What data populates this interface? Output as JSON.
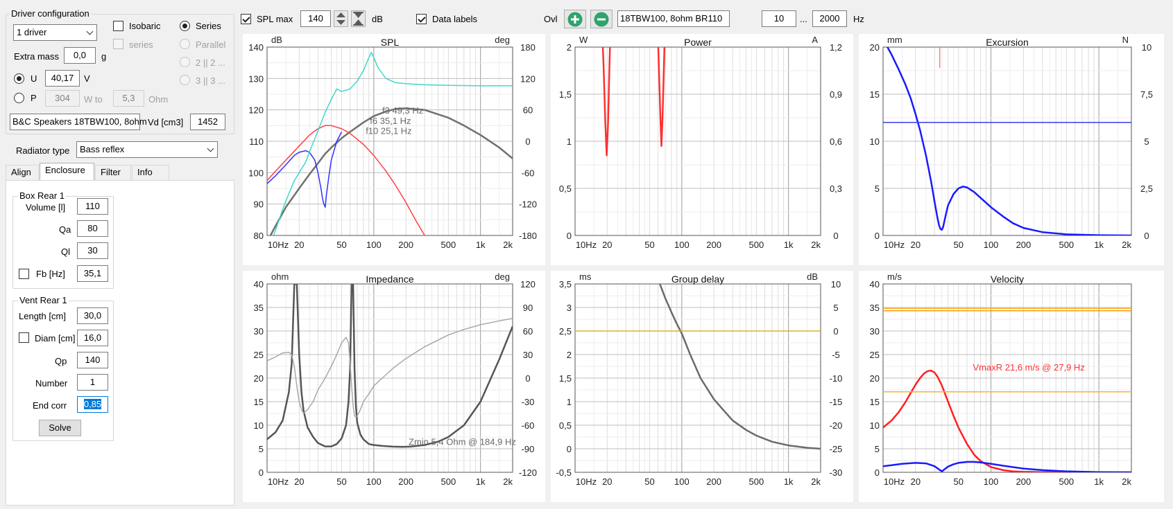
{
  "driver_config": {
    "title": "Driver configuration",
    "drivers_value": "1 driver",
    "isobaric_label": "Isobaric",
    "series_label": "Series",
    "series_sub_label": "series",
    "parallel_label": "Parallel",
    "two_two_label": "2 || 2 ...",
    "three_three_label": "3 || 3 ...",
    "extra_mass_label": "Extra mass",
    "extra_mass_value": "0,0",
    "extra_mass_unit": "g",
    "u_label": "U",
    "u_value": "40,17",
    "u_unit": "V",
    "p_label": "P",
    "p_value": "304",
    "p_unit": "W to",
    "ohm_value": "5,3",
    "ohm_unit": "Ohm",
    "driver_name": "B&C Speakers 18TBW100, 8ohm",
    "vd_label": "Vd [cm3]",
    "vd_value": "1452"
  },
  "radiator": {
    "label": "Radiator type",
    "value": "Bass reflex"
  },
  "tabs": [
    "Align",
    "Enclosure",
    "Filter",
    "Info"
  ],
  "box": {
    "title": "Box Rear 1",
    "volume_label": "Volume [l]",
    "volume_value": "110",
    "qa_label": "Qa",
    "qa_value": "80",
    "ql_label": "Ql",
    "ql_value": "30",
    "fb_label": "Fb [Hz]",
    "fb_value": "35,1"
  },
  "vent": {
    "title": "Vent Rear 1",
    "length_label": "Length [cm]",
    "length_value": "30,0",
    "diam_label": "Diam [cm]",
    "diam_value": "16,0",
    "qp_label": "Qp",
    "qp_value": "140",
    "number_label": "Number",
    "number_value": "1",
    "endcorr_label": "End corr",
    "endcorr_value": "0,85",
    "solve_label": "Solve"
  },
  "toolbar": {
    "spl_max_label": "SPL max",
    "spl_max_value": "140",
    "db_unit": "dB",
    "data_labels_label": "Data labels",
    "ovl_label": "Ovl",
    "project_name": "18TBW100, 8ohm BR110",
    "freq_min": "10",
    "freq_sep": "...",
    "freq_max": "2000",
    "freq_unit": "Hz"
  },
  "chart_data": [
    {
      "type": "line",
      "title": "SPL",
      "ylabel": "dB",
      "y2label": "deg",
      "ylim": [
        80,
        140
      ],
      "y2lim": [
        -180,
        180
      ],
      "yticks": [
        "140",
        "130",
        "120",
        "110",
        "100",
        "90",
        "80"
      ],
      "y2ticks": [
        "180",
        "120",
        "60",
        "0",
        "-60",
        "-120",
        "-180"
      ],
      "annotations": [
        "f3 49,3 Hz",
        "f6 35,1 Hz",
        "f10 25,1 Hz"
      ],
      "series": [
        {
          "color": "#6f6f6f",
          "axis": "left",
          "x": [
            10,
            12,
            15,
            20,
            25,
            30,
            35,
            40,
            50,
            60,
            80,
            100,
            130,
            160,
            200,
            300,
            500,
            700,
            1000,
            1500,
            2000
          ],
          "y": [
            78,
            83,
            89,
            95,
            99.5,
            103,
            106,
            108,
            111,
            113,
            116,
            118,
            119.5,
            120.3,
            120.5,
            120,
            117.5,
            115,
            112,
            108,
            104.5
          ]
        },
        {
          "color": "#ff4040",
          "axis": "left",
          "x": [
            10,
            12,
            15,
            20,
            25,
            30,
            35,
            40,
            50,
            60,
            80,
            100,
            130,
            160,
            200,
            250,
            300
          ],
          "y": [
            97.5,
            100.5,
            104,
            108.5,
            112,
            114,
            115,
            115,
            114,
            112.5,
            109,
            105.5,
            100.5,
            96,
            90.5,
            84.5,
            80
          ]
        },
        {
          "color": "#3030ff",
          "axis": "left",
          "x": [
            10,
            12,
            15,
            18,
            20,
            23,
            25,
            28,
            30,
            32,
            33,
            34,
            35.1,
            36,
            38,
            40,
            45,
            50
          ],
          "y": [
            96.5,
            99,
            102.5,
            105.5,
            106.5,
            107,
            106.5,
            104,
            100,
            95,
            92,
            90,
            89,
            93,
            99,
            104,
            110,
            113
          ]
        },
        {
          "color": "#40d8c8",
          "axis": "right",
          "x": [
            10,
            12,
            14,
            16,
            18,
            20,
            23,
            25,
            30,
            35,
            40,
            45,
            50,
            60,
            70,
            80,
            90,
            95,
            100,
            110,
            130,
            160,
            200,
            300,
            500,
            1000,
            2000
          ],
          "y": [
            -210,
            -170,
            -130,
            -100,
            -75,
            -60,
            -40,
            -20,
            20,
            55,
            80,
            100,
            95,
            100,
            115,
            135,
            160,
            170,
            160,
            140,
            120,
            112,
            110,
            108,
            107,
            106,
            106
          ]
        }
      ]
    },
    {
      "type": "line",
      "title": "Power",
      "ylabel": "W",
      "y2label": "A",
      "ylim": [
        0,
        2
      ],
      "y2lim": [
        0,
        1.2
      ],
      "yticks": [
        "2",
        "1,5",
        "1",
        "0,5",
        "0"
      ],
      "y2ticks": [
        "1,2",
        "0,9",
        "0,6",
        "0,3",
        "0"
      ],
      "series": [
        {
          "color": "#ff3030",
          "axis": "left",
          "x": [
            17.8,
            18.5,
            19.2,
            19.8,
            20.4,
            21,
            21.6
          ],
          "y": [
            2.3,
            1.8,
            1.2,
            0.85,
            1.2,
            1.8,
            2.3
          ]
        },
        {
          "color": "#ff3030",
          "axis": "left",
          "x": [
            59,
            61,
            63,
            64.5,
            66,
            68,
            70
          ],
          "y": [
            2.3,
            1.8,
            1.25,
            0.95,
            1.25,
            1.8,
            2.3
          ]
        }
      ]
    },
    {
      "type": "line",
      "title": "Excursion",
      "ylabel": "mm",
      "y2label": "N",
      "ylim": [
        0,
        20
      ],
      "y2lim": [
        0,
        10
      ],
      "yticks": [
        "20",
        "15",
        "10",
        "5",
        "0"
      ],
      "y2ticks": [
        "10",
        "7,5",
        "5",
        "2,5",
        "0"
      ],
      "series": [
        {
          "color": "#1a1aff",
          "axis": "left",
          "x": [
            10,
            11,
            12,
            14,
            16,
            18,
            20,
            22,
            25,
            28,
            30,
            32,
            33,
            34,
            35.1,
            36,
            38,
            40,
            45,
            50,
            55,
            60,
            70,
            80,
            100,
            130,
            160,
            200,
            300,
            500,
            1000,
            2000
          ],
          "y": [
            21,
            20,
            19.2,
            17.6,
            16.1,
            14.6,
            12.9,
            11.2,
            8.5,
            5.6,
            3.6,
            1.8,
            1.1,
            0.7,
            0.6,
            0.9,
            2.1,
            3.2,
            4.4,
            5.0,
            5.2,
            5.1,
            4.6,
            4.0,
            3.0,
            2.0,
            1.3,
            0.8,
            0.35,
            0.12,
            0.03,
            0
          ]
        },
        {
          "color": "#3a3aee",
          "axis": "left",
          "x": [
            10,
            2000
          ],
          "y": [
            12,
            12
          ]
        },
        {
          "color": "#ff8080",
          "axis": "left",
          "x": [
            33.5,
            33.5
          ],
          "y": [
            20,
            17.8
          ]
        }
      ]
    },
    {
      "type": "line",
      "title": "Impedance",
      "ylabel": "ohm",
      "y2label": "deg",
      "ylim": [
        0,
        40
      ],
      "y2lim": [
        -120,
        120
      ],
      "yticks": [
        "40",
        "35",
        "30",
        "25",
        "20",
        "15",
        "10",
        "5",
        "0"
      ],
      "y2ticks": [
        "120",
        "90",
        "60",
        "30",
        "0",
        "-30",
        "-60",
        "-90",
        "-120"
      ],
      "annotations": [
        "Zmin 5,4 Ohm @ 184,9 Hz"
      ],
      "series": [
        {
          "color": "#555555",
          "axis": "left",
          "x": [
            10,
            12,
            14,
            16,
            17,
            18,
            19,
            20,
            21,
            22,
            24,
            27,
            30,
            35,
            40,
            45,
            50,
            55,
            58,
            60,
            62,
            63,
            64,
            66,
            68,
            70,
            75,
            80,
            90,
            100,
            120,
            150,
            184.9,
            220,
            300,
            400,
            500,
            700,
            1000,
            1500,
            2000
          ],
          "y": [
            7,
            8.5,
            11,
            17,
            23,
            40,
            40,
            25,
            17,
            13,
            9.5,
            7.5,
            6.2,
            5.5,
            5.5,
            6,
            7.2,
            10,
            15,
            22,
            40,
            40,
            40,
            22,
            14,
            10.5,
            8,
            7,
            6,
            5.8,
            5.6,
            5.45,
            5.4,
            5.45,
            5.8,
            6.5,
            7.5,
            10,
            15,
            24,
            31
          ]
        },
        {
          "color": "#a8a8a8",
          "axis": "right",
          "x": [
            10,
            12,
            14,
            16,
            17,
            18,
            19,
            20,
            21,
            22,
            24,
            27,
            30,
            35,
            40,
            45,
            50,
            55,
            58,
            60,
            62,
            64,
            66,
            68,
            70,
            75,
            80,
            90,
            100,
            120,
            150,
            200,
            300,
            500,
            700,
            1000,
            1500,
            2000
          ],
          "y": [
            22,
            27,
            32,
            33,
            30,
            15,
            -10,
            -30,
            -40,
            -45,
            -40,
            -30,
            -15,
            0,
            15,
            30,
            45,
            52,
            45,
            20,
            -10,
            -35,
            -48,
            -50,
            -48,
            -40,
            -30,
            -20,
            -10,
            0,
            12,
            25,
            40,
            55,
            62,
            68,
            73,
            76
          ]
        }
      ]
    },
    {
      "type": "line",
      "title": "Group delay",
      "ylabel": "ms",
      "y2label": "dB",
      "ylim": [
        -0.5,
        3.5
      ],
      "y2lim": [
        -30,
        10
      ],
      "yticks": [
        "3,5",
        "3",
        "2,5",
        "2",
        "1,5",
        "1",
        "0,5",
        "0",
        "-0,5"
      ],
      "y2ticks": [
        "10",
        "5",
        "0",
        "-5",
        "-10",
        "-15",
        "-20",
        "-25",
        "-30"
      ],
      "series": [
        {
          "color": "#6a6a6a",
          "axis": "left",
          "x": [
            60,
            70,
            80,
            90,
            100,
            120,
            150,
            200,
            250,
            300,
            400,
            500,
            700,
            1000,
            1500,
            2000
          ],
          "y": [
            3.6,
            3.2,
            2.9,
            2.65,
            2.45,
            2.0,
            1.5,
            1.05,
            0.8,
            0.6,
            0.4,
            0.28,
            0.15,
            0.07,
            0.02,
            0
          ]
        },
        {
          "color": "#e0b020",
          "axis": "left",
          "x": [
            10,
            2000
          ],
          "y": [
            2.5,
            2.5
          ]
        }
      ]
    },
    {
      "type": "line",
      "title": "Velocity",
      "ylabel": "m/s",
      "ylim": [
        0,
        40
      ],
      "yticks": [
        "40",
        "35",
        "30",
        "25",
        "20",
        "15",
        "10",
        "5",
        "0"
      ],
      "annotations": [
        "VmaxR 21,6 m/s @ 27,9 Hz"
      ],
      "series": [
        {
          "color": "#ff2020",
          "axis": "left",
          "x": [
            10,
            12,
            14,
            16,
            18,
            20,
            22,
            24,
            26,
            27.9,
            30,
            32,
            35,
            40,
            45,
            50,
            60,
            70,
            80,
            100,
            130,
            160,
            200,
            300,
            500,
            1000,
            2000
          ],
          "y": [
            9.5,
            11,
            12.8,
            14.8,
            16.8,
            18.6,
            20,
            21,
            21.5,
            21.6,
            21.2,
            20.3,
            18.5,
            15,
            12,
            9.5,
            6,
            3.7,
            2.4,
            1.1,
            0.45,
            0.2,
            0.1,
            0.03,
            0,
            0,
            0
          ]
        },
        {
          "color": "#1a1aff",
          "axis": "left",
          "x": [
            10,
            12,
            15,
            20,
            25,
            30,
            33,
            35.1,
            37,
            40,
            45,
            50,
            60,
            70,
            80,
            100,
            130,
            160,
            200,
            300,
            500,
            1000,
            2000
          ],
          "y": [
            1.3,
            1.5,
            1.8,
            2,
            1.9,
            1.3,
            0.6,
            0.2,
            0.6,
            1.2,
            1.7,
            2,
            2.2,
            2.2,
            2.1,
            1.8,
            1.4,
            1.1,
            0.8,
            0.45,
            0.2,
            0.05,
            0
          ]
        },
        {
          "color": "#ff9a00",
          "axis": "left",
          "x": [
            10,
            2000
          ],
          "y": [
            34.3,
            34.3
          ]
        },
        {
          "color": "#ffb020",
          "axis": "left",
          "x": [
            10,
            2000
          ],
          "y": [
            34.8,
            34.8
          ]
        },
        {
          "color": "#ffb030",
          "axis": "left",
          "x": [
            10,
            2000
          ],
          "y": [
            17.1,
            17.1
          ]
        }
      ]
    }
  ],
  "x_axis_ticks": [
    "10Hz",
    "20",
    "50",
    "100",
    "200",
    "500",
    "1k",
    "2k"
  ]
}
